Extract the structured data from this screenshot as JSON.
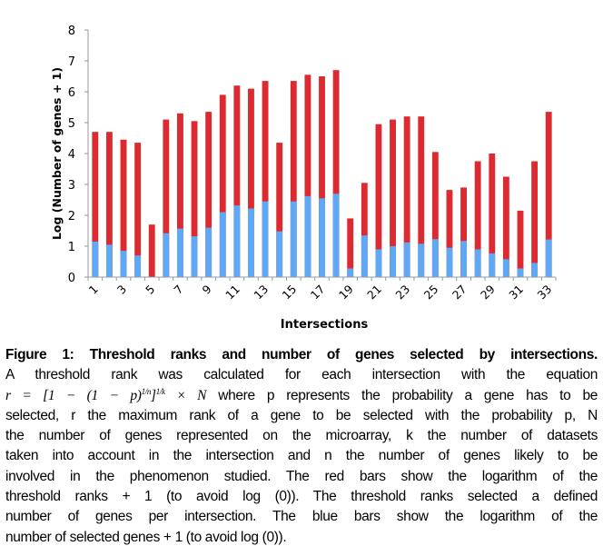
{
  "chart_data": {
    "type": "bar",
    "title": "",
    "xlabel": "Intersections",
    "ylabel": "Log (Number of genes + 1)",
    "ylim": [
      0,
      8
    ],
    "yticks": [
      "0",
      "1",
      "2",
      "3",
      "4",
      "5",
      "6",
      "7",
      "8"
    ],
    "categories": [
      "1",
      "2",
      "3",
      "4",
      "5",
      "6",
      "7",
      "8",
      "9",
      "10",
      "11",
      "12",
      "13",
      "14",
      "15",
      "16",
      "17",
      "18",
      "19",
      "20",
      "21",
      "22",
      "23",
      "24",
      "25",
      "26",
      "27",
      "28",
      "29",
      "30",
      "31",
      "32",
      "33"
    ],
    "xtick_labels": [
      "1",
      "3",
      "5",
      "7",
      "9",
      "11",
      "13",
      "15",
      "17",
      "19",
      "21",
      "23",
      "25",
      "27",
      "29",
      "31",
      "33"
    ],
    "grid": false,
    "legend": "none",
    "series": [
      {
        "color": "#dc2a30",
        "values": [
          4.7,
          4.7,
          4.45,
          4.35,
          1.7,
          5.1,
          5.3,
          5.05,
          5.35,
          5.9,
          6.2,
          6.1,
          6.35,
          4.35,
          6.35,
          6.55,
          6.5,
          6.7,
          1.9,
          3.05,
          4.95,
          5.1,
          5.2,
          5.2,
          4.05,
          2.82,
          2.9,
          3.75,
          4.0,
          3.25,
          2.15,
          3.75,
          5.35
        ]
      },
      {
        "color": "#5ea8f5",
        "values": [
          1.15,
          1.05,
          0.85,
          0.7,
          0,
          1.42,
          1.57,
          1.32,
          1.6,
          2.1,
          2.32,
          2.22,
          2.45,
          1.48,
          2.45,
          2.62,
          2.55,
          2.7,
          0.28,
          1.35,
          0.9,
          1.0,
          1.12,
          1.08,
          1.23,
          0.95,
          1.17,
          0.9,
          0.77,
          0.58,
          0.28,
          0.46,
          1.22
        ]
      }
    ]
  },
  "caption": {
    "title": "Figure 1: Threshold ranks and number of genes selected by intersections.",
    "line1": "A threshold rank was calculated for each intersection with the equation",
    "formula": {
      "lhs": "r",
      "eq": " = [1 − (1 − ",
      "p": "p",
      "close1": ")",
      "exp1": "1/n",
      "close2": "]",
      "exp2": "1/k",
      "times": " × ",
      "N": "N"
    },
    "line2_rest": " where p represents the probability a gene has to be",
    "line3": "selected, r the maximum rank of a gene to be selected with the probability p, N",
    "line4": "the number of genes represented on the microarray, k the number of datasets",
    "line5": "taken into account in the intersection and n the number of genes likely to be",
    "line6": "involved in the phenomenon studied. The red bars show the logarithm of the",
    "line7": "threshold ranks + 1 (to avoid log (0)). The threshold ranks selected a defined",
    "line8": "number of genes per intersection. The blue bars show the logarithm of the",
    "line9": "number of selected genes + 1 (to avoid log (0))."
  }
}
